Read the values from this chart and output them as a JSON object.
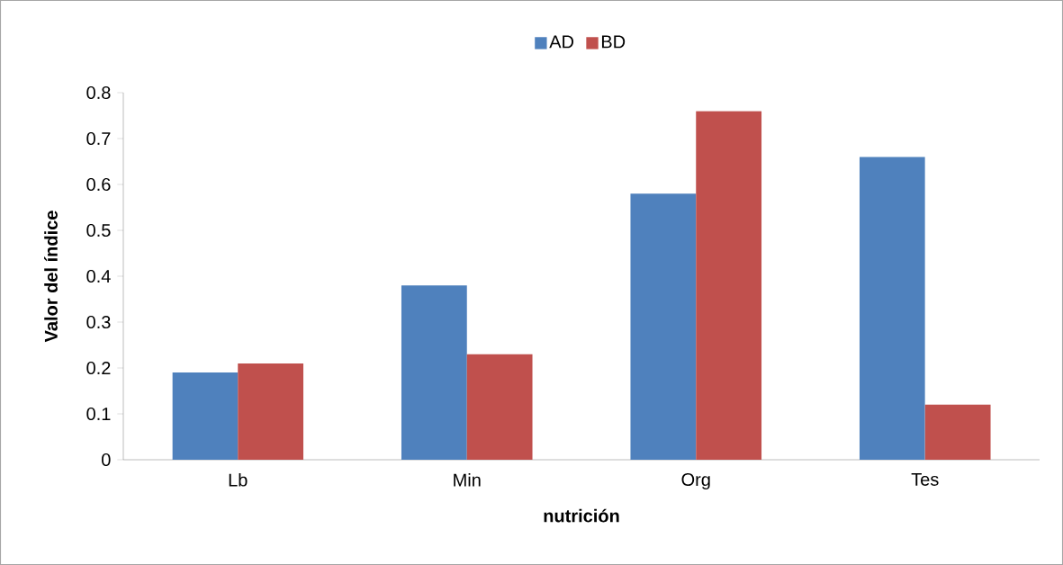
{
  "chart_data": {
    "type": "bar",
    "xlabel": "nutrición",
    "ylabel": "Valor del índice",
    "categories": [
      "Lb",
      "Min",
      "Org",
      "Tes"
    ],
    "series": [
      {
        "name": "AD",
        "color": "#4f81bd",
        "values": [
          0.19,
          0.38,
          0.58,
          0.66
        ]
      },
      {
        "name": "BD",
        "color": "#c0504d",
        "values": [
          0.21,
          0.23,
          0.76,
          0.12
        ]
      }
    ],
    "ylim": [
      0,
      0.8
    ],
    "yticks": [
      0,
      0.1,
      0.2,
      0.3,
      0.4,
      0.5,
      0.6,
      0.7,
      0.8
    ],
    "legend": "top"
  }
}
